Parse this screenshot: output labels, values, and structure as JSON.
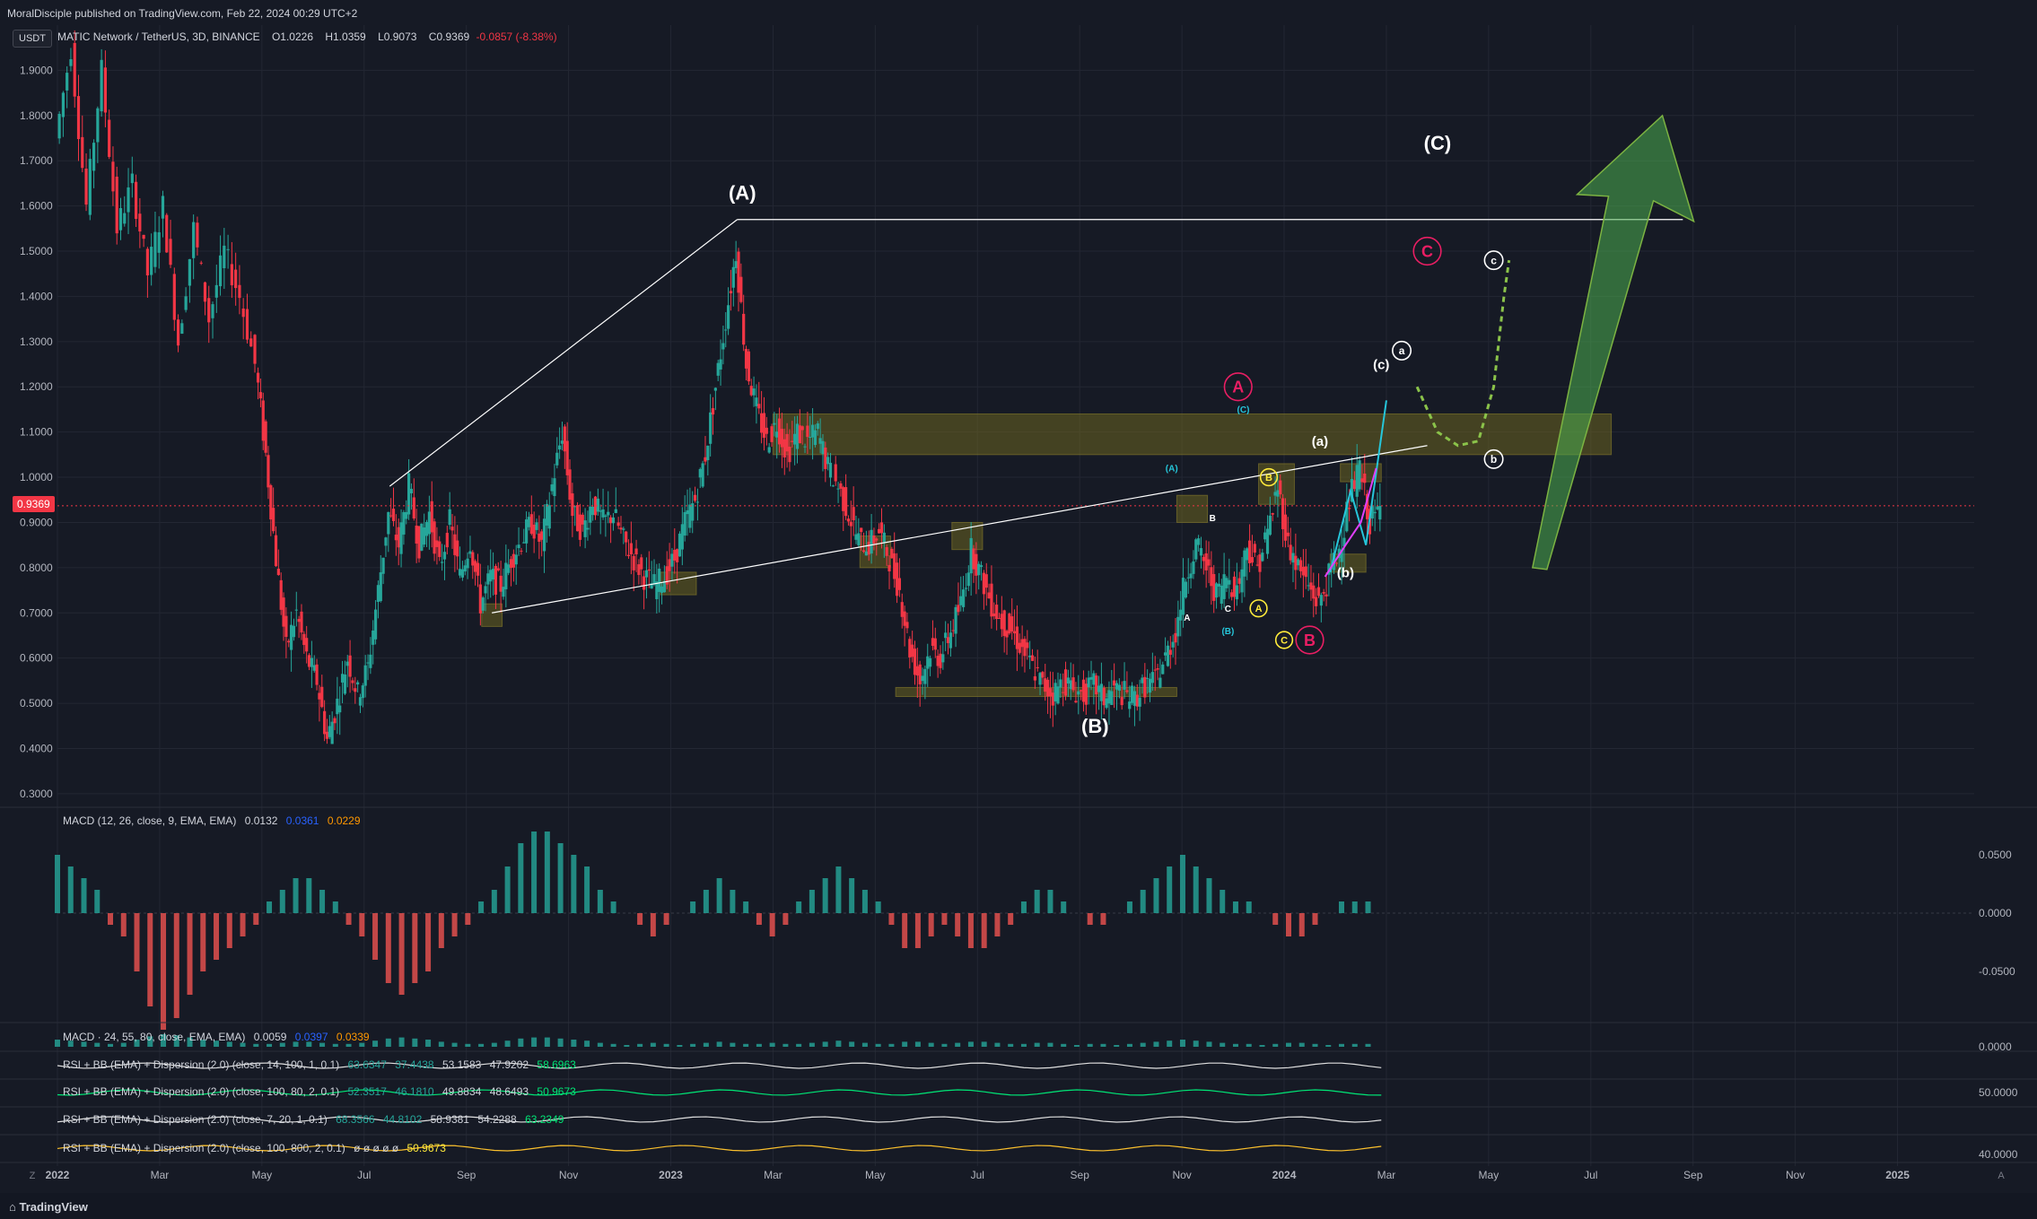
{
  "header": {
    "publisher": "MoralDisciple published on TradingView.com, Feb 22, 2024 00:29 UTC+2",
    "currency_button": "USDT",
    "symbol": "MATIC Network / TetherUS, 3D, BINANCE",
    "open": "O1.0226",
    "high": "H1.0359",
    "low": "L0.9073",
    "close": "C0.9369",
    "change": "-0.0857 (-8.38%)"
  },
  "last_price_tag": "0.9369",
  "footer": {
    "brand": "TradingView",
    "left_button": "Z",
    "right_button": "A"
  },
  "indicators": {
    "macd1": {
      "title": "MACD (12, 26, close, 9, EMA, EMA)",
      "v1": "0.0132",
      "v2": "0.0361",
      "v3": "0.0229"
    },
    "macd2": {
      "title": "MACD · 24, 55, 80, close, EMA, EMA)",
      "v1": "0.0059",
      "v2": "0.0397",
      "v3": "0.0339"
    },
    "rsi1": {
      "title": "RSI + BB (EMA) + Dispersion (2.0) (close, 14, 100, 1, 0.1)",
      "v1": "63.6347",
      "v2": "37.4438",
      "v3": "53.1583",
      "v4": "47.9202",
      "v5": "58.6963"
    },
    "rsi2": {
      "title": "RSI + BB (EMA) + Dispersion (2.0) (close, 100, 80, 2, 0.1)",
      "v1": "52.3517",
      "v2": "46.1810",
      "v3": "49.8834",
      "v4": "48.6493",
      "v5": "50.9673"
    },
    "rsi3": {
      "title": "RSI + BB (EMA) + Dispersion (2.0) (close, 7, 20, 1, 0.1)",
      "v1": "68.3566",
      "v2": "44.8102",
      "v3": "58.9381",
      "v4": "54.2288",
      "v5": "63.2349"
    },
    "rsi4": {
      "title": "RSI + BB (EMA) + Dispersion (2.0) (close, 100, 800, 2, 0.1)",
      "v1": "ø ø ø ø ø",
      "v2": "50.9673"
    }
  },
  "chart_data": {
    "type": "candlestick",
    "title": "MATIC Network / TetherUS, 3D, BINANCE",
    "xlabel": "",
    "ylabel": "",
    "ylim": [
      0.27,
      2.0
    ],
    "grid": true,
    "price_ticks": [
      "1.9000",
      "1.8000",
      "1.7000",
      "1.6000",
      "1.5000",
      "1.4000",
      "1.3000",
      "1.2000",
      "1.1000",
      "1.0000",
      "0.9000",
      "0.8000",
      "0.7000",
      "0.6000",
      "0.5000",
      "0.4000",
      "0.3000"
    ],
    "time_ticks": [
      {
        "label": "2022",
        "t": 0
      },
      {
        "label": "Mar",
        "t": 2
      },
      {
        "label": "May",
        "t": 4
      },
      {
        "label": "Jul",
        "t": 6
      },
      {
        "label": "Sep",
        "t": 8
      },
      {
        "label": "Nov",
        "t": 10
      },
      {
        "label": "2023",
        "t": 12
      },
      {
        "label": "Mar",
        "t": 14
      },
      {
        "label": "May",
        "t": 16
      },
      {
        "label": "Jul",
        "t": 18
      },
      {
        "label": "Sep",
        "t": 20
      },
      {
        "label": "Nov",
        "t": 22
      },
      {
        "label": "2024",
        "t": 24
      },
      {
        "label": "Mar",
        "t": 26
      },
      {
        "label": "May",
        "t": 28
      },
      {
        "label": "Jul",
        "t": 30
      },
      {
        "label": "Sep",
        "t": 32
      },
      {
        "label": "Nov",
        "t": 34
      },
      {
        "label": "2025",
        "t": 36
      }
    ],
    "price_path": [
      [
        0,
        1.75
      ],
      [
        0.3,
        1.95
      ],
      [
        0.6,
        1.6
      ],
      [
        0.9,
        1.9
      ],
      [
        1.2,
        1.55
      ],
      [
        1.5,
        1.65
      ],
      [
        1.8,
        1.45
      ],
      [
        2.1,
        1.6
      ],
      [
        2.4,
        1.3
      ],
      [
        2.7,
        1.55
      ],
      [
        3.0,
        1.35
      ],
      [
        3.3,
        1.5
      ],
      [
        3.6,
        1.4
      ],
      [
        3.9,
        1.25
      ],
      [
        4.1,
        1.05
      ],
      [
        4.3,
        0.82
      ],
      [
        4.5,
        0.62
      ],
      [
        4.7,
        0.7
      ],
      [
        4.9,
        0.6
      ],
      [
        5.1,
        0.55
      ],
      [
        5.3,
        0.42
      ],
      [
        5.5,
        0.5
      ],
      [
        5.7,
        0.6
      ],
      [
        5.9,
        0.52
      ],
      [
        6.1,
        0.58
      ],
      [
        6.3,
        0.75
      ],
      [
        6.5,
        0.92
      ],
      [
        6.7,
        0.85
      ],
      [
        6.9,
        0.98
      ],
      [
        7.1,
        0.85
      ],
      [
        7.3,
        0.92
      ],
      [
        7.5,
        0.8
      ],
      [
        7.7,
        0.9
      ],
      [
        7.9,
        0.78
      ],
      [
        8.1,
        0.86
      ],
      [
        8.3,
        0.72
      ],
      [
        8.5,
        0.78
      ],
      [
        8.7,
        0.76
      ],
      [
        8.9,
        0.82
      ],
      [
        9.1,
        0.86
      ],
      [
        9.3,
        0.9
      ],
      [
        9.5,
        0.85
      ],
      [
        9.7,
        0.98
      ],
      [
        9.9,
        1.1
      ],
      [
        10.1,
        0.92
      ],
      [
        10.3,
        0.88
      ],
      [
        10.5,
        0.95
      ],
      [
        10.7,
        0.9
      ],
      [
        10.9,
        0.92
      ],
      [
        11.1,
        0.86
      ],
      [
        11.3,
        0.82
      ],
      [
        11.5,
        0.78
      ],
      [
        11.7,
        0.76
      ],
      [
        11.9,
        0.78
      ],
      [
        12.1,
        0.82
      ],
      [
        12.3,
        0.9
      ],
      [
        12.5,
        0.95
      ],
      [
        12.7,
        1.05
      ],
      [
        12.9,
        1.2
      ],
      [
        13.1,
        1.35
      ],
      [
        13.3,
        1.5
      ],
      [
        13.5,
        1.25
      ],
      [
        13.7,
        1.15
      ],
      [
        13.9,
        1.08
      ],
      [
        14.1,
        1.12
      ],
      [
        14.3,
        1.05
      ],
      [
        14.5,
        1.1
      ],
      [
        14.7,
        1.08
      ],
      [
        14.9,
        1.1
      ],
      [
        15.1,
        1.02
      ],
      [
        15.3,
        0.98
      ],
      [
        15.5,
        0.92
      ],
      [
        15.7,
        0.86
      ],
      [
        15.9,
        0.85
      ],
      [
        16.1,
        0.88
      ],
      [
        16.3,
        0.82
      ],
      [
        16.5,
        0.75
      ],
      [
        16.7,
        0.62
      ],
      [
        16.9,
        0.55
      ],
      [
        17.1,
        0.62
      ],
      [
        17.3,
        0.6
      ],
      [
        17.5,
        0.66
      ],
      [
        17.7,
        0.72
      ],
      [
        17.9,
        0.84
      ],
      [
        18.1,
        0.78
      ],
      [
        18.3,
        0.72
      ],
      [
        18.5,
        0.68
      ],
      [
        18.7,
        0.66
      ],
      [
        18.9,
        0.62
      ],
      [
        19.1,
        0.58
      ],
      [
        19.3,
        0.54
      ],
      [
        19.5,
        0.52
      ],
      [
        19.7,
        0.55
      ],
      [
        19.9,
        0.53
      ],
      [
        20.1,
        0.52
      ],
      [
        20.3,
        0.54
      ],
      [
        20.5,
        0.51
      ],
      [
        20.7,
        0.53
      ],
      [
        20.9,
        0.52
      ],
      [
        21.1,
        0.51
      ],
      [
        21.3,
        0.54
      ],
      [
        21.5,
        0.55
      ],
      [
        21.7,
        0.6
      ],
      [
        21.9,
        0.66
      ],
      [
        22.1,
        0.78
      ],
      [
        22.3,
        0.85
      ],
      [
        22.5,
        0.8
      ],
      [
        22.7,
        0.74
      ],
      [
        22.9,
        0.78
      ],
      [
        23.1,
        0.75
      ],
      [
        23.3,
        0.85
      ],
      [
        23.5,
        0.8
      ],
      [
        23.7,
        0.88
      ],
      [
        23.9,
        0.98
      ],
      [
        24.1,
        0.85
      ],
      [
        24.3,
        0.8
      ],
      [
        24.5,
        0.76
      ],
      [
        24.7,
        0.72
      ],
      [
        24.9,
        0.78
      ],
      [
        25.1,
        0.84
      ],
      [
        25.3,
        0.95
      ],
      [
        25.5,
        1.02
      ],
      [
        25.7,
        0.9
      ],
      [
        25.9,
        0.93
      ]
    ],
    "zones": [
      {
        "t0": 14.0,
        "t1": 30.4,
        "p0": 1.05,
        "p1": 1.14
      },
      {
        "t0": 16.4,
        "t1": 21.9,
        "p0": 0.515,
        "p1": 0.535
      },
      {
        "t0": 8.3,
        "t1": 8.7,
        "p0": 0.67,
        "p1": 0.72
      },
      {
        "t0": 11.8,
        "t1": 12.5,
        "p0": 0.74,
        "p1": 0.79
      },
      {
        "t0": 15.7,
        "t1": 16.3,
        "p0": 0.8,
        "p1": 0.87
      },
      {
        "t0": 17.5,
        "t1": 18.1,
        "p0": 0.84,
        "p1": 0.9
      },
      {
        "t0": 21.9,
        "t1": 22.5,
        "p0": 0.9,
        "p1": 0.96
      },
      {
        "t0": 23.5,
        "t1": 24.2,
        "p0": 0.94,
        "p1": 1.03
      },
      {
        "t0": 25.1,
        "t1": 25.9,
        "p0": 0.99,
        "p1": 1.03
      },
      {
        "t0": 24.9,
        "t1": 25.6,
        "p0": 0.79,
        "p1": 0.83
      }
    ],
    "lines": [
      {
        "name": "top-trend",
        "pts": [
          [
            6.5,
            0.98
          ],
          [
            13.3,
            1.57
          ]
        ],
        "color": "#ffffff"
      },
      {
        "name": "horizontal-resistance",
        "pts": [
          [
            13.3,
            1.57
          ],
          [
            31.8,
            1.57
          ]
        ],
        "color": "#ffffff"
      },
      {
        "name": "lower-trend",
        "pts": [
          [
            8.5,
            0.7
          ],
          [
            26.8,
            1.07
          ]
        ],
        "color": "#ffffff"
      }
    ],
    "projections": [
      {
        "name": "cyan-projection",
        "color": "#26c6da",
        "pts": [
          [
            24.9,
            0.79
          ],
          [
            25.3,
            0.97
          ],
          [
            25.6,
            0.85
          ],
          [
            26.0,
            1.17
          ]
        ]
      },
      {
        "name": "magenta-projection",
        "color": "#e040fb",
        "pts": [
          [
            24.8,
            0.78
          ],
          [
            25.2,
            0.85
          ],
          [
            25.5,
            0.9
          ],
          [
            25.8,
            1.02
          ]
        ]
      },
      {
        "name": "green-dotted-path",
        "color": "#8bc34a",
        "dashed": true,
        "pts": [
          [
            26.6,
            1.2
          ],
          [
            27.0,
            1.1
          ],
          [
            27.4,
            1.07
          ],
          [
            27.8,
            1.08
          ],
          [
            28.1,
            1.2
          ],
          [
            28.3,
            1.4
          ],
          [
            28.4,
            1.48
          ]
        ]
      }
    ],
    "wave_labels": [
      {
        "text": "(A)",
        "t": 13.4,
        "p": 1.63,
        "color": "#ffffff",
        "size": 22
      },
      {
        "text": "(B)",
        "t": 20.3,
        "p": 0.45,
        "color": "#ffffff",
        "size": 22
      },
      {
        "text": "(C)",
        "t": 27.0,
        "p": 1.74,
        "color": "#ffffff",
        "size": 22
      },
      {
        "text": "A",
        "t": 23.1,
        "p": 1.2,
        "color": "#e91e63",
        "size": 18,
        "circle": true
      },
      {
        "text": "B",
        "t": 24.5,
        "p": 0.64,
        "color": "#e91e63",
        "size": 18,
        "circle": true
      },
      {
        "text": "C",
        "t": 26.8,
        "p": 1.5,
        "color": "#e91e63",
        "size": 18,
        "circle": true
      },
      {
        "text": "(a)",
        "t": 24.7,
        "p": 1.08,
        "color": "#ffffff",
        "size": 15
      },
      {
        "text": "(b)",
        "t": 25.2,
        "p": 0.79,
        "color": "#ffffff",
        "size": 15
      },
      {
        "text": "(c)",
        "t": 25.9,
        "p": 1.25,
        "color": "#ffffff",
        "size": 15
      },
      {
        "text": "a",
        "t": 26.3,
        "p": 1.28,
        "color": "#ffffff",
        "size": 12,
        "circle": true
      },
      {
        "text": "b",
        "t": 28.1,
        "p": 1.04,
        "color": "#ffffff",
        "size": 12,
        "circle": true
      },
      {
        "text": "c",
        "t": 28.1,
        "p": 1.48,
        "color": "#ffffff",
        "size": 12,
        "circle": true
      },
      {
        "text": "(A)",
        "t": 21.8,
        "p": 1.02,
        "color": "#26c6da",
        "size": 10
      },
      {
        "text": "(C)",
        "t": 23.2,
        "p": 1.15,
        "color": "#26c6da",
        "size": 10
      },
      {
        "text": "(B)",
        "t": 22.9,
        "p": 0.66,
        "color": "#26c6da",
        "size": 10
      },
      {
        "text": "B",
        "t": 22.6,
        "p": 0.91,
        "color": "#ffffff",
        "size": 10
      },
      {
        "text": "A",
        "t": 22.1,
        "p": 0.69,
        "color": "#ffffff",
        "size": 10
      },
      {
        "text": "C",
        "t": 22.9,
        "p": 0.71,
        "color": "#ffffff",
        "size": 10
      },
      {
        "text": "B",
        "t": 23.7,
        "p": 1.0,
        "color": "#ffeb3b",
        "size": 11,
        "circle": true
      },
      {
        "text": "A",
        "t": 23.5,
        "p": 0.71,
        "color": "#ffeb3b",
        "size": 11,
        "circle": true
      },
      {
        "text": "C",
        "t": 24.0,
        "p": 0.64,
        "color": "#ffeb3b",
        "size": 11,
        "circle": true
      }
    ],
    "arrow": {
      "from": [
        29.0,
        0.8
      ],
      "to": [
        31.4,
        1.8
      ],
      "color": "#4caf50"
    },
    "last_price": 0.9369,
    "macd_ticks": [
      "0.0500",
      "0.0000",
      "-0.0500"
    ],
    "rsi_ticks": [
      "0.0000",
      "50.0000",
      "40.0000"
    ],
    "macd_hist": [
      0.05,
      0.04,
      0.03,
      0.02,
      -0.01,
      -0.02,
      -0.05,
      -0.08,
      -0.1,
      -0.09,
      -0.07,
      -0.05,
      -0.04,
      -0.03,
      -0.02,
      -0.01,
      0.01,
      0.02,
      0.03,
      0.03,
      0.02,
      0.01,
      -0.01,
      -0.02,
      -0.04,
      -0.06,
      -0.07,
      -0.06,
      -0.05,
      -0.03,
      -0.02,
      -0.01,
      0.01,
      0.02,
      0.04,
      0.06,
      0.07,
      0.07,
      0.06,
      0.05,
      0.04,
      0.02,
      0.01,
      0.0,
      -0.01,
      -0.02,
      -0.01,
      0.0,
      0.01,
      0.02,
      0.03,
      0.02,
      0.01,
      -0.01,
      -0.02,
      -0.01,
      0.01,
      0.02,
      0.03,
      0.04,
      0.03,
      0.02,
      0.01,
      -0.01,
      -0.03,
      -0.03,
      -0.02,
      -0.01,
      -0.02,
      -0.03,
      -0.03,
      -0.02,
      -0.01,
      0.01,
      0.02,
      0.02,
      0.01,
      0.0,
      -0.01,
      -0.01,
      0.0,
      0.01,
      0.02,
      0.03,
      0.04,
      0.05,
      0.04,
      0.03,
      0.02,
      0.01,
      0.01,
      0.0,
      -0.01,
      -0.02,
      -0.02,
      -0.01,
      0.0,
      0.01,
      0.01,
      0.01
    ]
  }
}
